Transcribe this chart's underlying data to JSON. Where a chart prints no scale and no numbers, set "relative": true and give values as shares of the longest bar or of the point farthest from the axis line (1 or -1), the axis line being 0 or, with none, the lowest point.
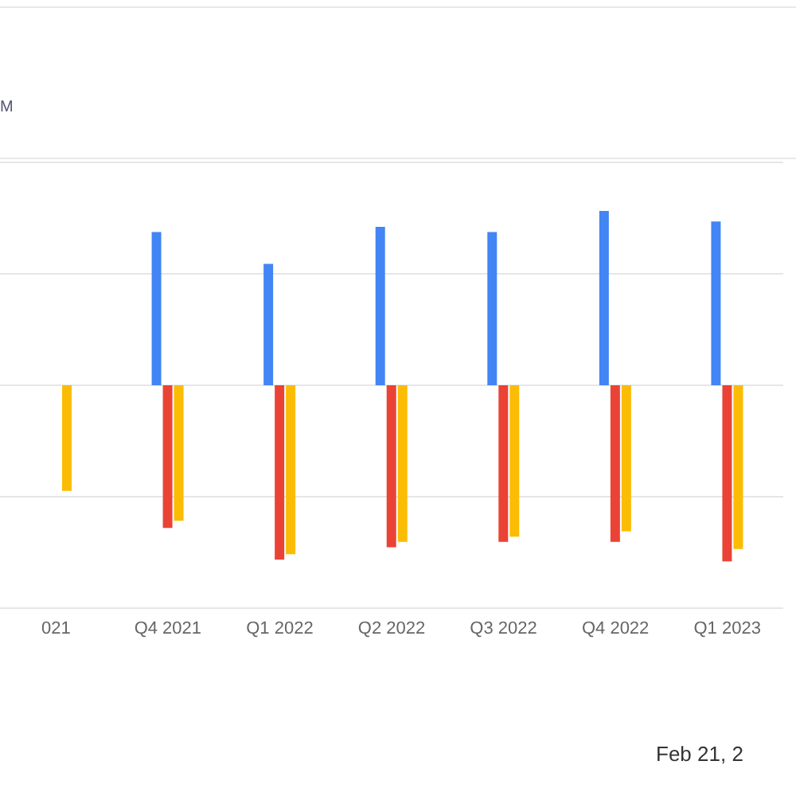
{
  "chart_data": {
    "type": "bar",
    "subtitle": "M",
    "annotations": [
      "Feb 21, 2"
    ],
    "categories": [
      "021",
      "Q4 2021",
      "Q1 2022",
      "Q2 2022",
      "Q3 2022",
      "Q4 2022",
      "Q1 2023"
    ],
    "relative": true,
    "grid": "y",
    "legend": false,
    "series": [
      {
        "color": "#4285f4",
        "values": [
          null,
          0.87,
          0.69,
          0.9,
          0.87,
          0.99,
          0.93
        ]
      },
      {
        "color": "#ea4335",
        "values": [
          null,
          -0.81,
          -0.99,
          -0.92,
          -0.89,
          -0.89,
          -1
        ]
      },
      {
        "color": "#fbbc04",
        "values": [
          -0.6,
          -0.77,
          -0.96,
          -0.89,
          -0.86,
          -0.83,
          -0.93
        ]
      }
    ]
  }
}
